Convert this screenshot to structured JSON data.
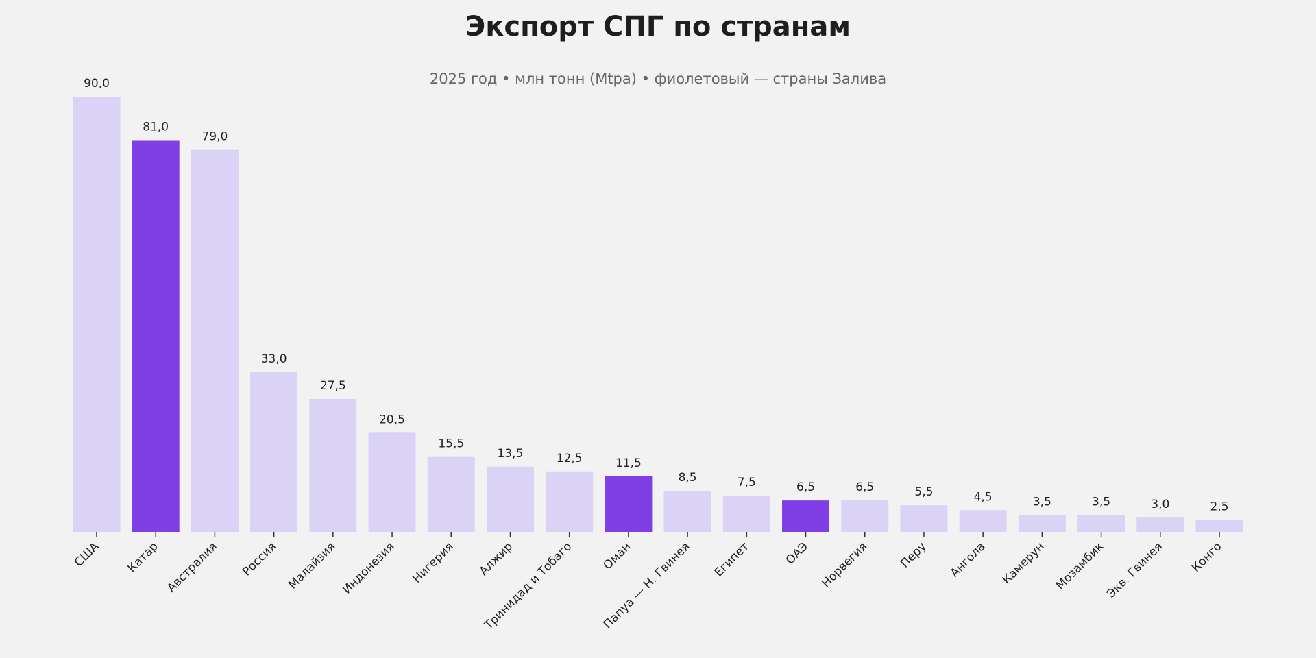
{
  "chart_data": {
    "type": "bar",
    "title": "Экспорт СПГ по странам",
    "subtitle": "2025 год • млн тонн (Mtpa) • фиолетовый — страны Залива",
    "xlabel": "",
    "ylabel": "",
    "ylim": [
      0,
      90
    ],
    "grid": false,
    "categories": [
      "США",
      "Катар",
      "Австралия",
      "Россия",
      "Малайзия",
      "Индонезия",
      "Нигерия",
      "Алжир",
      "Тринидад и Тобаго",
      "Оман",
      "Папуа — Н. Гвинея",
      "Египет",
      "ОАЭ",
      "Норвегия",
      "Перу",
      "Ангола",
      "Камерун",
      "Мозамбик",
      "Экв. Гвинея",
      "Конго"
    ],
    "values": [
      90.0,
      81.0,
      79.0,
      33.0,
      27.5,
      20.5,
      15.5,
      13.5,
      12.5,
      11.5,
      8.5,
      7.5,
      6.5,
      6.5,
      5.5,
      4.5,
      3.5,
      3.5,
      3.0,
      2.5
    ],
    "value_labels": [
      "90,0",
      "81,0",
      "79,0",
      "33,0",
      "27,5",
      "20,5",
      "15,5",
      "13,5",
      "12,5",
      "11,5",
      "8,5",
      "7,5",
      "6,5",
      "6,5",
      "5,5",
      "4,5",
      "3,5",
      "3,5",
      "3,0",
      "2,5"
    ],
    "highlighted": [
      "Катар",
      "Оман",
      "ОАЭ"
    ],
    "colors": {
      "default": "#dad3f5",
      "highlight": "#7f3fe4",
      "background": "#f2f2f2"
    }
  }
}
